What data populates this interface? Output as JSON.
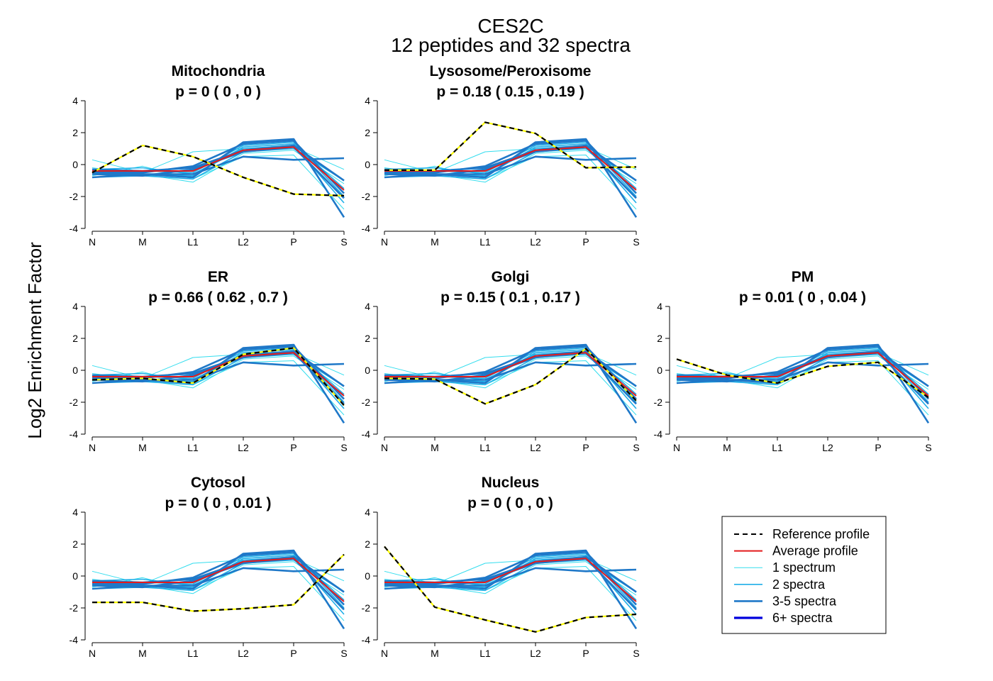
{
  "figure": {
    "title": "CES2C",
    "subtitle": "12  peptides and  32  spectra",
    "ylabel": "Log2 Enrichment Factor"
  },
  "colors": {
    "reference_dash": "#000000",
    "reference_under": "#ffff00",
    "average": "#e31a1c",
    "one_spectrum": "#33ddee",
    "two_spectra": "#1eaee8",
    "three_to_five": "#1f78c8",
    "six_plus": "#0000dd"
  },
  "legend": {
    "items": [
      {
        "label": "Reference profile",
        "style": "reference"
      },
      {
        "label": "Average profile",
        "style": "average"
      },
      {
        "label": "1 spectrum",
        "style": "one_spectrum"
      },
      {
        "label": "2 spectra",
        "style": "two_spectra"
      },
      {
        "label": "3-5 spectra",
        "style": "three_to_five"
      },
      {
        "label": "6+ spectra",
        "style": "six_plus"
      }
    ]
  },
  "chart_data": [
    {
      "type": "line",
      "title": "Mitochondria",
      "p_text": "p =  0  ( 0 ,  0 )",
      "categories": [
        "N",
        "M",
        "L1",
        "L2",
        "P",
        "S"
      ],
      "ylim": [
        -4,
        4
      ],
      "yticks": [
        -4,
        -2,
        0,
        2,
        4
      ],
      "reference": [
        -0.5,
        1.2,
        0.5,
        -0.8,
        -1.85,
        -1.95
      ]
    },
    {
      "type": "line",
      "title": "Lysosome/Peroxisome",
      "p_text": "p =  0.18  ( 0.15 ,  0.19 )",
      "categories": [
        "N",
        "M",
        "L1",
        "L2",
        "P",
        "S"
      ],
      "ylim": [
        -4,
        4
      ],
      "yticks": [
        -4,
        -2,
        0,
        2,
        4
      ],
      "reference": [
        -0.35,
        -0.35,
        2.65,
        1.95,
        -0.2,
        -0.15
      ]
    },
    {
      "type": "line",
      "title": "ER",
      "p_text": "p =  0.66  ( 0.62 ,  0.7 )",
      "categories": [
        "N",
        "M",
        "L1",
        "L2",
        "P",
        "S"
      ],
      "ylim": [
        -4,
        4
      ],
      "yticks": [
        -4,
        -2,
        0,
        2,
        4
      ],
      "reference": [
        -0.6,
        -0.5,
        -0.8,
        1.0,
        1.4,
        -2.2
      ]
    },
    {
      "type": "line",
      "title": "Golgi",
      "p_text": "p =  0.15  ( 0.1 ,  0.17 )",
      "categories": [
        "N",
        "M",
        "L1",
        "L2",
        "P",
        "S"
      ],
      "ylim": [
        -4,
        4
      ],
      "yticks": [
        -4,
        -2,
        0,
        2,
        4
      ],
      "reference": [
        -0.5,
        -0.55,
        -2.1,
        -0.9,
        1.35,
        -1.9
      ]
    },
    {
      "type": "line",
      "title": "PM",
      "p_text": "p =  0.01  ( 0 ,  0.04 )",
      "categories": [
        "N",
        "M",
        "L1",
        "L2",
        "P",
        "S"
      ],
      "ylim": [
        -4,
        4
      ],
      "yticks": [
        -4,
        -2,
        0,
        2,
        4
      ],
      "reference": [
        0.7,
        -0.3,
        -0.8,
        0.25,
        0.5,
        -1.7
      ]
    },
    {
      "type": "line",
      "title": "Cytosol",
      "p_text": "p =  0  ( 0 ,  0.01 )",
      "categories": [
        "N",
        "M",
        "L1",
        "L2",
        "P",
        "S"
      ],
      "ylim": [
        -4,
        4
      ],
      "yticks": [
        -4,
        -2,
        0,
        2,
        4
      ],
      "reference": [
        -1.65,
        -1.65,
        -2.2,
        -2.05,
        -1.8,
        1.35
      ]
    },
    {
      "type": "line",
      "title": "Nucleus",
      "p_text": "p =  0  ( 0 ,  0 )",
      "categories": [
        "N",
        "M",
        "L1",
        "L2",
        "P",
        "S"
      ],
      "ylim": [
        -4,
        4
      ],
      "yticks": [
        -4,
        -2,
        0,
        2,
        4
      ],
      "reference": [
        1.85,
        -1.95,
        -2.75,
        -3.5,
        -2.6,
        -2.4
      ]
    }
  ],
  "peptide_profiles": {
    "average": [
      -0.4,
      -0.4,
      -0.4,
      0.9,
      1.1,
      -1.6
    ],
    "series": [
      {
        "group": "one_spectrum",
        "values": [
          0.3,
          -0.5,
          0.8,
          1.0,
          1.1,
          -0.3
        ]
      },
      {
        "group": "one_spectrum",
        "values": [
          -0.2,
          -0.6,
          -1.1,
          0.7,
          0.9,
          -1.2
        ]
      },
      {
        "group": "one_spectrum",
        "values": [
          -0.7,
          -0.1,
          -0.9,
          0.5,
          0.6,
          -2.8
        ]
      },
      {
        "group": "two_spectra",
        "values": [
          -0.3,
          -0.2,
          -0.6,
          1.0,
          1.2,
          -2.4
        ]
      },
      {
        "group": "two_spectra",
        "values": [
          -0.8,
          -0.7,
          -0.9,
          0.8,
          1.0,
          -1.0
        ]
      },
      {
        "group": "two_spectra",
        "values": [
          -0.6,
          -0.4,
          -0.5,
          1.2,
          1.4,
          -2.0
        ]
      },
      {
        "group": "two_spectra",
        "values": [
          -0.5,
          -0.6,
          -0.7,
          1.1,
          1.3,
          -1.5
        ]
      },
      {
        "group": "three_to_five",
        "values": [
          -0.8,
          -0.6,
          -0.8,
          1.4,
          1.6,
          -3.3
        ]
      },
      {
        "group": "three_to_five",
        "values": [
          -0.4,
          -0.5,
          -0.1,
          1.3,
          1.5,
          -1.8
        ]
      },
      {
        "group": "three_to_five",
        "values": [
          -0.6,
          -0.7,
          -0.3,
          0.8,
          1.1,
          -2.1
        ]
      },
      {
        "group": "three_to_five",
        "values": [
          -0.5,
          -0.6,
          -0.6,
          0.5,
          0.3,
          0.4
        ]
      },
      {
        "group": "three_to_five",
        "values": [
          -0.3,
          -0.4,
          -0.2,
          0.9,
          1.2,
          -1.0
        ]
      }
    ]
  }
}
